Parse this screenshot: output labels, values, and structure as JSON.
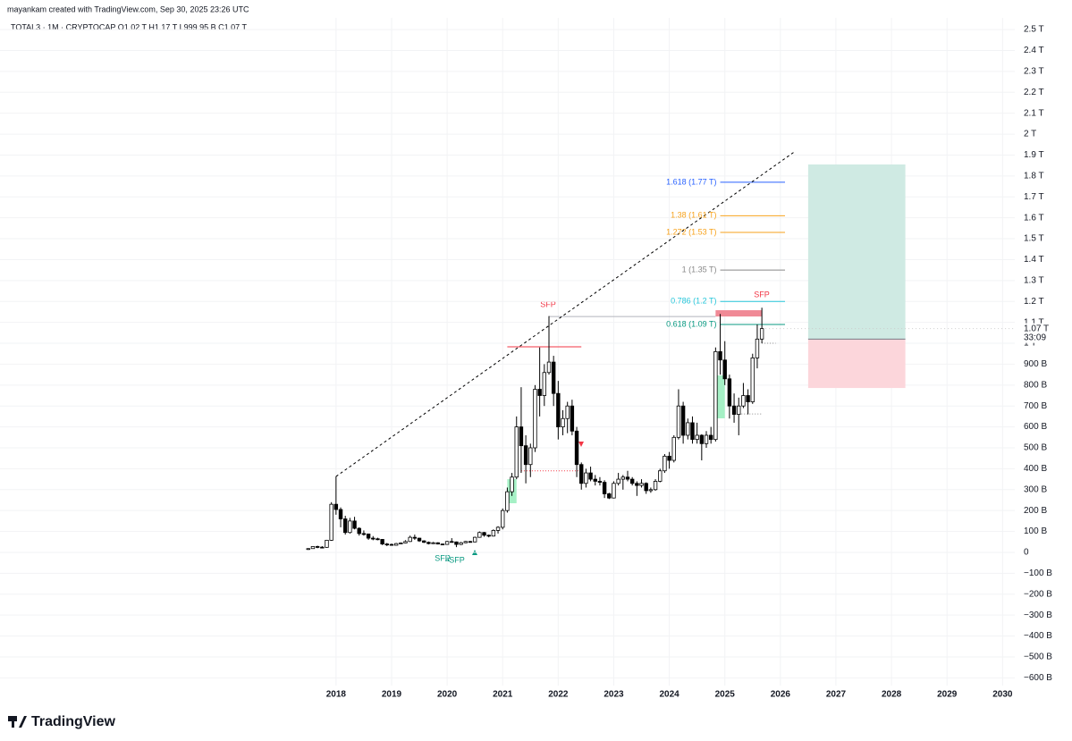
{
  "header": "mayankam created with TradingView.com, Sep 30, 2025 23:26 UTC",
  "branding": "TradingView",
  "chart_data": {
    "type": "candlestick",
    "title": "TOTAL3 · 1M · CRYPTOCAP   O1.02 T   H1.17 T   L999.95 B   C1.07 T",
    "x": [
      "2017-07",
      "2017-08",
      "2017-09",
      "2017-10",
      "2017-11",
      "2017-12",
      "2018-01",
      "2018-02",
      "2018-03",
      "2018-04",
      "2018-05",
      "2018-06",
      "2018-07",
      "2018-08",
      "2018-09",
      "2018-10",
      "2018-11",
      "2018-12",
      "2019-01",
      "2019-02",
      "2019-03",
      "2019-04",
      "2019-05",
      "2019-06",
      "2019-07",
      "2019-08",
      "2019-09",
      "2019-10",
      "2019-11",
      "2019-12",
      "2020-01",
      "2020-02",
      "2020-03",
      "2020-04",
      "2020-05",
      "2020-06",
      "2020-07",
      "2020-08",
      "2020-09",
      "2020-10",
      "2020-11",
      "2020-12",
      "2021-01",
      "2021-02",
      "2021-03",
      "2021-04",
      "2021-05",
      "2021-06",
      "2021-07",
      "2021-08",
      "2021-09",
      "2021-10",
      "2021-11",
      "2021-12",
      "2022-01",
      "2022-02",
      "2022-03",
      "2022-04",
      "2022-05",
      "2022-06",
      "2022-07",
      "2022-08",
      "2022-09",
      "2022-10",
      "2022-11",
      "2022-12",
      "2023-01",
      "2023-02",
      "2023-03",
      "2023-04",
      "2023-05",
      "2023-06",
      "2023-07",
      "2023-08",
      "2023-09",
      "2023-10",
      "2023-11",
      "2023-12",
      "2024-01",
      "2024-02",
      "2024-03",
      "2024-04",
      "2024-05",
      "2024-06",
      "2024-07",
      "2024-08",
      "2024-09",
      "2024-10",
      "2024-11",
      "2024-12",
      "2025-01",
      "2025-02",
      "2025-03",
      "2025-04",
      "2025-05",
      "2025-06",
      "2025-07",
      "2025-08",
      "2025-09"
    ],
    "open": [
      15,
      18,
      28,
      25,
      24,
      58,
      230,
      205,
      160,
      95,
      150,
      115,
      90,
      88,
      68,
      65,
      62,
      40,
      38,
      34,
      42,
      45,
      52,
      72,
      68,
      55,
      48,
      42,
      46,
      40,
      38,
      52,
      50,
      38,
      46,
      52,
      50,
      72,
      95,
      82,
      78,
      105,
      120,
      200,
      290,
      360,
      600,
      510,
      420,
      500,
      780,
      750,
      860,
      910,
      760,
      600,
      640,
      700,
      580,
      420,
      330,
      380,
      350,
      340,
      335,
      280,
      260,
      330,
      350,
      360,
      350,
      330,
      320,
      330,
      295,
      300,
      340,
      390,
      460,
      440,
      550,
      700,
      560,
      620,
      540,
      560,
      520,
      560,
      540,
      960,
      920,
      830,
      700,
      660,
      700,
      750,
      720,
      930,
      1020
    ],
    "high": [
      20,
      30,
      32,
      30,
      60,
      240,
      363,
      215,
      175,
      165,
      170,
      120,
      105,
      90,
      78,
      70,
      64,
      45,
      42,
      45,
      48,
      58,
      80,
      85,
      70,
      58,
      52,
      50,
      48,
      42,
      55,
      68,
      52,
      50,
      55,
      55,
      75,
      100,
      98,
      85,
      110,
      125,
      210,
      310,
      380,
      650,
      790,
      560,
      520,
      800,
      980,
      900,
      1130,
      940,
      820,
      680,
      720,
      730,
      600,
      430,
      400,
      410,
      370,
      360,
      345,
      285,
      340,
      380,
      370,
      390,
      360,
      340,
      350,
      335,
      310,
      350,
      400,
      470,
      480,
      560,
      780,
      720,
      640,
      650,
      620,
      565,
      580,
      600,
      980,
      1140,
      1010,
      850,
      760,
      740,
      810,
      780,
      950,
      1090,
      1170
    ],
    "low": [
      12,
      17,
      20,
      22,
      22,
      55,
      180,
      120,
      85,
      90,
      110,
      80,
      80,
      60,
      58,
      58,
      35,
      30,
      32,
      33,
      40,
      44,
      50,
      60,
      50,
      45,
      38,
      40,
      38,
      35,
      37,
      48,
      25,
      35,
      44,
      48,
      48,
      70,
      75,
      72,
      76,
      90,
      110,
      190,
      270,
      350,
      380,
      330,
      360,
      480,
      650,
      700,
      850,
      700,
      540,
      560,
      570,
      560,
      360,
      300,
      310,
      340,
      320,
      320,
      260,
      255,
      258,
      320,
      300,
      340,
      320,
      270,
      310,
      280,
      285,
      295,
      335,
      380,
      400,
      430,
      540,
      520,
      540,
      520,
      520,
      440,
      500,
      520,
      530,
      850,
      800,
      640,
      620,
      560,
      690,
      660,
      710,
      880,
      999.95
    ],
    "close": [
      18,
      28,
      25,
      24,
      58,
      230,
      205,
      160,
      95,
      150,
      115,
      90,
      88,
      68,
      65,
      62,
      40,
      38,
      34,
      42,
      45,
      52,
      72,
      68,
      55,
      48,
      42,
      46,
      40,
      38,
      52,
      50,
      38,
      46,
      52,
      50,
      72,
      95,
      82,
      78,
      105,
      120,
      200,
      290,
      360,
      600,
      510,
      420,
      500,
      780,
      750,
      860,
      910,
      760,
      600,
      640,
      700,
      580,
      420,
      330,
      380,
      350,
      340,
      335,
      280,
      260,
      330,
      350,
      360,
      350,
      330,
      320,
      330,
      295,
      300,
      340,
      390,
      460,
      440,
      550,
      700,
      560,
      620,
      540,
      560,
      520,
      560,
      540,
      960,
      920,
      830,
      700,
      660,
      700,
      750,
      720,
      930,
      1020,
      1070
    ],
    "up_color": "#ffffff",
    "down_color": "#000000",
    "wick_color": "#000000",
    "xlim": [
      2011.95,
      2030.22
    ],
    "xticks": [
      2018,
      2019,
      2020,
      2021,
      2022,
      2023,
      2024,
      2025,
      2026,
      2027,
      2028,
      2029,
      2030
    ],
    "ylim": [
      -637,
      2556
    ],
    "yticks": [
      {
        "value": 2500,
        "label": "2.5 T"
      },
      {
        "value": 2400,
        "label": "2.4 T"
      },
      {
        "value": 2300,
        "label": "2.3 T"
      },
      {
        "value": 2200,
        "label": "2.2 T"
      },
      {
        "value": 2100,
        "label": "2.1 T"
      },
      {
        "value": 2000,
        "label": "2 T"
      },
      {
        "value": 1900,
        "label": "1.9 T"
      },
      {
        "value": 1800,
        "label": "1.8 T"
      },
      {
        "value": 1700,
        "label": "1.7 T"
      },
      {
        "value": 1600,
        "label": "1.6 T"
      },
      {
        "value": 1500,
        "label": "1.5 T"
      },
      {
        "value": 1400,
        "label": "1.4 T"
      },
      {
        "value": 1300,
        "label": "1.3 T"
      },
      {
        "value": 1200,
        "label": "1.2 T"
      },
      {
        "value": 1100,
        "label": "1.1 T"
      },
      {
        "value": 1000,
        "label": "1 T"
      },
      {
        "value": 900,
        "label": "900 B"
      },
      {
        "value": 800,
        "label": "800 B"
      },
      {
        "value": 700,
        "label": "700 B"
      },
      {
        "value": 600,
        "label": "600 B"
      },
      {
        "value": 500,
        "label": "500 B"
      },
      {
        "value": 400,
        "label": "400 B"
      },
      {
        "value": 300,
        "label": "300 B"
      },
      {
        "value": 200,
        "label": "200 B"
      },
      {
        "value": 100,
        "label": "100 B"
      },
      0,
      {
        "value": -100,
        "label": "−100 B"
      },
      {
        "value": -200,
        "label": "−200 B"
      },
      {
        "value": -300,
        "label": "−300 B"
      },
      {
        "value": -400,
        "label": "−400 B"
      },
      {
        "value": -500,
        "label": "−500 B"
      },
      {
        "value": -600,
        "label": "−600 B"
      }
    ],
    "grid": true,
    "last_price": {
      "value": 1070,
      "label": "1.07 T"
    },
    "countdown": "33:09",
    "fib_levels": {
      "from": "2024-12",
      "to": "2026-02",
      "levels": [
        {
          "value": 1770,
          "label": "1.618 (1.77 T)",
          "color": "#2962ff"
        },
        {
          "value": 1610,
          "label": "1.38 (1.61 T)",
          "color": "#f7a21b"
        },
        {
          "value": 1530,
          "label": "1.272 (1.53 T)",
          "color": "#f7a21b"
        },
        {
          "value": 1350,
          "label": "1 (1.35 T)",
          "color": "#888888"
        },
        {
          "value": 1200,
          "label": "0.786 (1.2 T)",
          "color": "#26c6da"
        },
        {
          "value": 1090,
          "label": "0.618 (1.09 T)",
          "color": "#089981"
        }
      ]
    },
    "trendline": {
      "from": "2018-01",
      "to": "2026-04",
      "values": [
        363,
        1915
      ],
      "color": "#000000"
    },
    "position": {
      "from": "2026-07",
      "to": "2028-04",
      "target": 1855,
      "entry": 1020,
      "stop": 786,
      "profit_color": "#cfeae3",
      "loss_color": "#fcd6db"
    },
    "zones": [
      {
        "from": "2021-02",
        "to": "2021-04",
        "range": [
          235,
          350
        ],
        "color": "#a5f0c5"
      },
      {
        "from": "2024-11",
        "to": "2025-01",
        "range": [
          641,
          846
        ],
        "color": "#a5f0c5"
      },
      {
        "from": "2024-11",
        "to": "2025-09",
        "range": [
          1128,
          1158
        ],
        "color": "#f08a96"
      }
    ],
    "levels": [
      {
        "from": "2021-02",
        "to": "2022-06",
        "value": 983,
        "color": "#f23645",
        "dashed": false
      },
      {
        "from": "2021-05",
        "to": "2022-06",
        "value": 390,
        "color": "#f23645",
        "dashed": true
      },
      {
        "from": "2021-11",
        "to": "2024-11",
        "value": 1128,
        "color": "#b2b5be",
        "dashed": false
      },
      {
        "from": "2025-04",
        "to": "2025-09",
        "value": 662,
        "color": "#888888",
        "dashed": true
      },
      {
        "from": "2025-09",
        "to": "2025-12",
        "value": 1000,
        "color": "#888888",
        "dashed": true
      }
    ],
    "annotations": [
      "SFP",
      "SFP",
      "SFP",
      "SFP"
    ]
  }
}
